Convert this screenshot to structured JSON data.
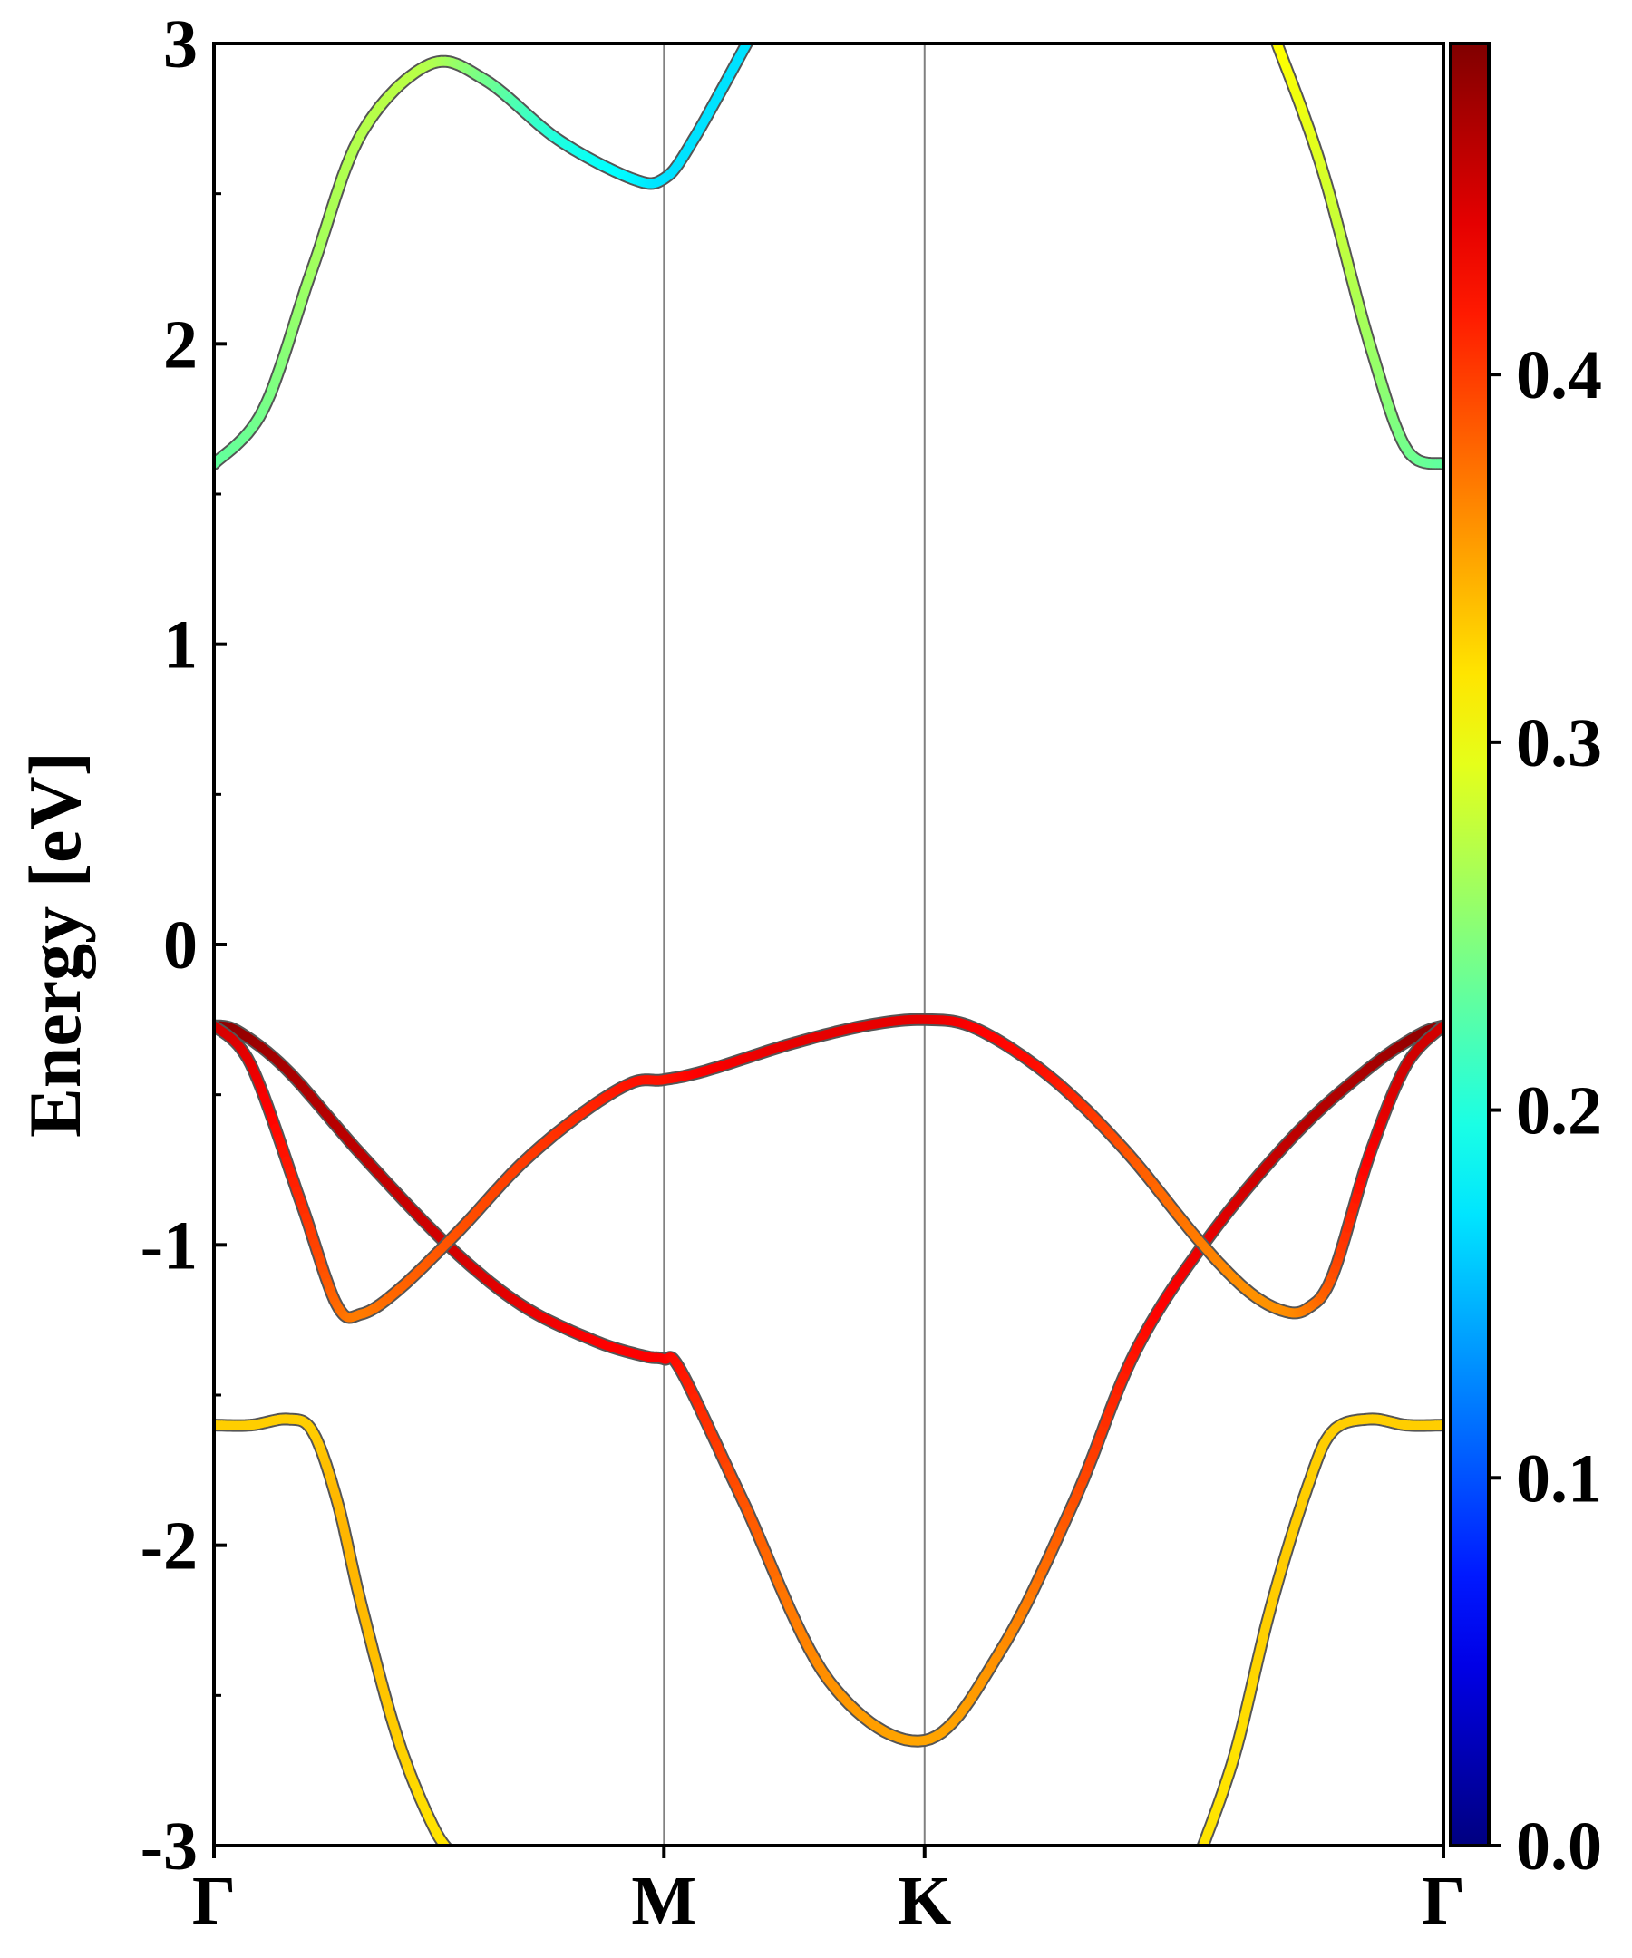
{
  "chart_data": {
    "type": "line",
    "title": "",
    "xlabel": "",
    "ylabel": "Energy [eV]",
    "ylim": [
      -3,
      3
    ],
    "y_ticks": [
      "-3",
      "-2",
      "-1",
      "0",
      "1",
      "2",
      "3"
    ],
    "k_points": [
      {
        "label": "Γ",
        "x": 0.0
      },
      {
        "label": "M",
        "x": 0.366
      },
      {
        "label": "K",
        "x": 0.578
      },
      {
        "label": "Γ",
        "x": 1.0
      }
    ],
    "colorbar": {
      "colormap": "jet",
      "range": [
        0.0,
        0.49
      ],
      "ticks": [
        "0.0",
        "0.1",
        "0.2",
        "0.3",
        "0.4"
      ]
    },
    "grid": false,
    "series": [
      {
        "x": [
          0.0,
          0.04,
          0.08,
          0.12,
          0.175,
          0.22,
          0.28,
          0.34,
          0.366,
          0.39,
          0.44
        ],
        "y": [
          1.6,
          1.78,
          2.25,
          2.7,
          2.93,
          2.88,
          2.68,
          2.55,
          2.55,
          2.68,
          3.05
        ],
        "color": [
          0.23,
          0.24,
          0.26,
          0.27,
          0.27,
          0.24,
          0.2,
          0.18,
          0.17,
          0.17,
          0.17
        ]
      },
      {
        "x": [
          0.86,
          0.9,
          0.94,
          0.97,
          1.0
        ],
        "y": [
          3.05,
          2.6,
          2.0,
          1.65,
          1.6
        ],
        "color": [
          0.31,
          0.29,
          0.26,
          0.24,
          0.23
        ]
      },
      {
        "x": [
          0.0,
          0.02,
          0.06,
          0.12,
          0.19,
          0.25,
          0.31,
          0.35,
          0.366,
          0.38,
          0.43,
          0.5,
          0.578,
          0.64,
          0.7,
          0.75,
          0.81,
          0.88,
          0.94,
          0.98,
          1.0
        ],
        "y": [
          -0.27,
          -0.29,
          -0.42,
          -0.7,
          -1.0,
          -1.2,
          -1.32,
          -1.37,
          -1.38,
          -1.42,
          -1.85,
          -2.45,
          -2.65,
          -2.35,
          -1.85,
          -1.35,
          -0.97,
          -0.63,
          -0.41,
          -0.3,
          -0.27
        ],
        "color": [
          0.48,
          0.48,
          0.47,
          0.46,
          0.45,
          0.44,
          0.43,
          0.43,
          0.43,
          0.42,
          0.39,
          0.36,
          0.35,
          0.36,
          0.39,
          0.42,
          0.44,
          0.46,
          0.47,
          0.48,
          0.48
        ]
      },
      {
        "x": [
          0.0,
          0.03,
          0.07,
          0.1,
          0.12,
          0.15,
          0.2,
          0.25,
          0.3,
          0.34,
          0.366,
          0.4,
          0.47,
          0.53,
          0.578,
          0.62,
          0.68,
          0.74,
          0.8,
          0.84,
          0.87,
          0.89,
          0.91,
          0.94,
          0.97,
          1.0
        ],
        "y": [
          -0.27,
          -0.4,
          -0.85,
          -1.2,
          -1.23,
          -1.15,
          -0.95,
          -0.73,
          -0.56,
          -0.46,
          -0.45,
          -0.42,
          -0.33,
          -0.27,
          -0.25,
          -0.28,
          -0.44,
          -0.68,
          -0.98,
          -1.15,
          -1.22,
          -1.21,
          -1.1,
          -0.7,
          -0.4,
          -0.27
        ],
        "color": [
          0.45,
          0.44,
          0.41,
          0.38,
          0.37,
          0.38,
          0.39,
          0.4,
          0.41,
          0.42,
          0.42,
          0.43,
          0.44,
          0.44,
          0.44,
          0.43,
          0.42,
          0.39,
          0.37,
          0.36,
          0.36,
          0.37,
          0.39,
          0.43,
          0.45,
          0.45
        ]
      },
      {
        "x": [
          0.0,
          0.03,
          0.06,
          0.08,
          0.1,
          0.12,
          0.15,
          0.18,
          0.2
        ],
        "y": [
          -1.6,
          -1.6,
          -1.58,
          -1.62,
          -1.85,
          -2.2,
          -2.65,
          -2.95,
          -3.05
        ],
        "color": [
          0.33,
          0.33,
          0.33,
          0.33,
          0.34,
          0.34,
          0.33,
          0.32,
          0.32
        ]
      },
      {
        "x": [
          0.8,
          0.83,
          0.86,
          0.89,
          0.91,
          0.94,
          0.97,
          1.0
        ],
        "y": [
          -3.05,
          -2.7,
          -2.2,
          -1.8,
          -1.62,
          -1.58,
          -1.6,
          -1.6
        ],
        "color": [
          0.32,
          0.32,
          0.33,
          0.33,
          0.33,
          0.33,
          0.33,
          0.33
        ]
      }
    ]
  }
}
